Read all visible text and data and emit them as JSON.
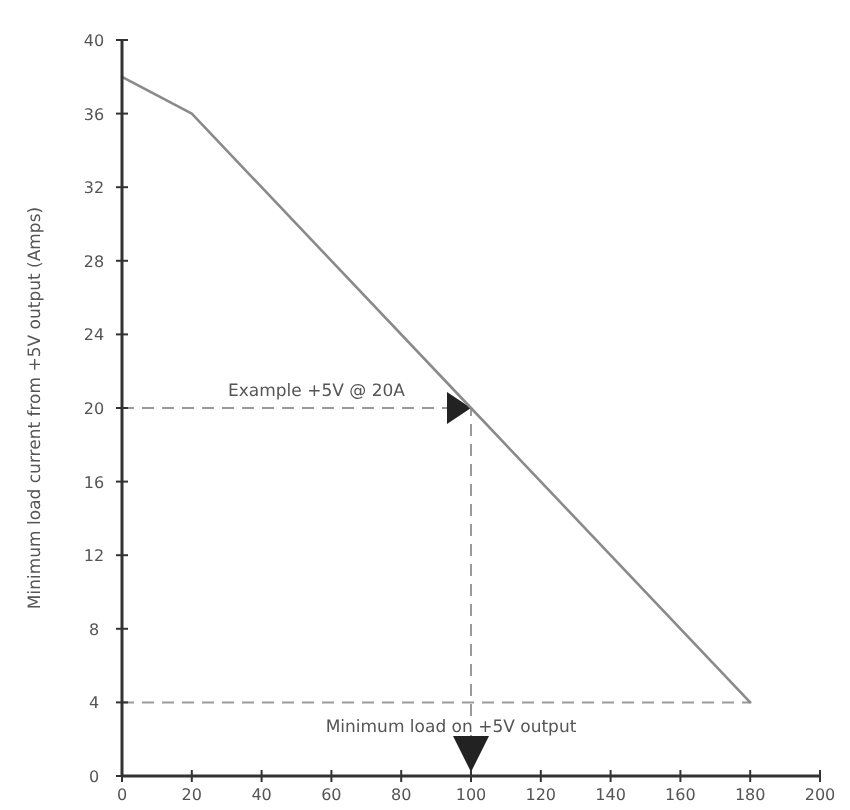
{
  "chart_data": {
    "type": "line",
    "ylabel": "Minimum load current from +5V output (Amps)",
    "x": [
      0,
      20,
      100,
      180
    ],
    "series": [
      {
        "color": "#8a8a8a",
        "values": [
          38,
          36,
          20,
          4
        ]
      }
    ],
    "xlim": [
      0,
      200
    ],
    "xticks": [
      0,
      20,
      40,
      60,
      80,
      100,
      120,
      140,
      160,
      180,
      200
    ],
    "ylim": [
      0,
      40
    ],
    "yticks": [
      0,
      4,
      8,
      12,
      16,
      20,
      24,
      28,
      32,
      36,
      40
    ],
    "ref_lines": [
      {
        "axis": "y",
        "value": 20,
        "color": "#9a9a9a",
        "line_style": "dashed",
        "label": "Example +5V @ 20A"
      },
      {
        "axis": "x",
        "value": 100,
        "color": "#9a9a9a",
        "line_style": "dashed"
      },
      {
        "axis": "y",
        "value": 4,
        "color": "#9a9a9a",
        "line_style": "dashed",
        "label": "Minimum load on +5V output"
      }
    ],
    "grid": false
  }
}
